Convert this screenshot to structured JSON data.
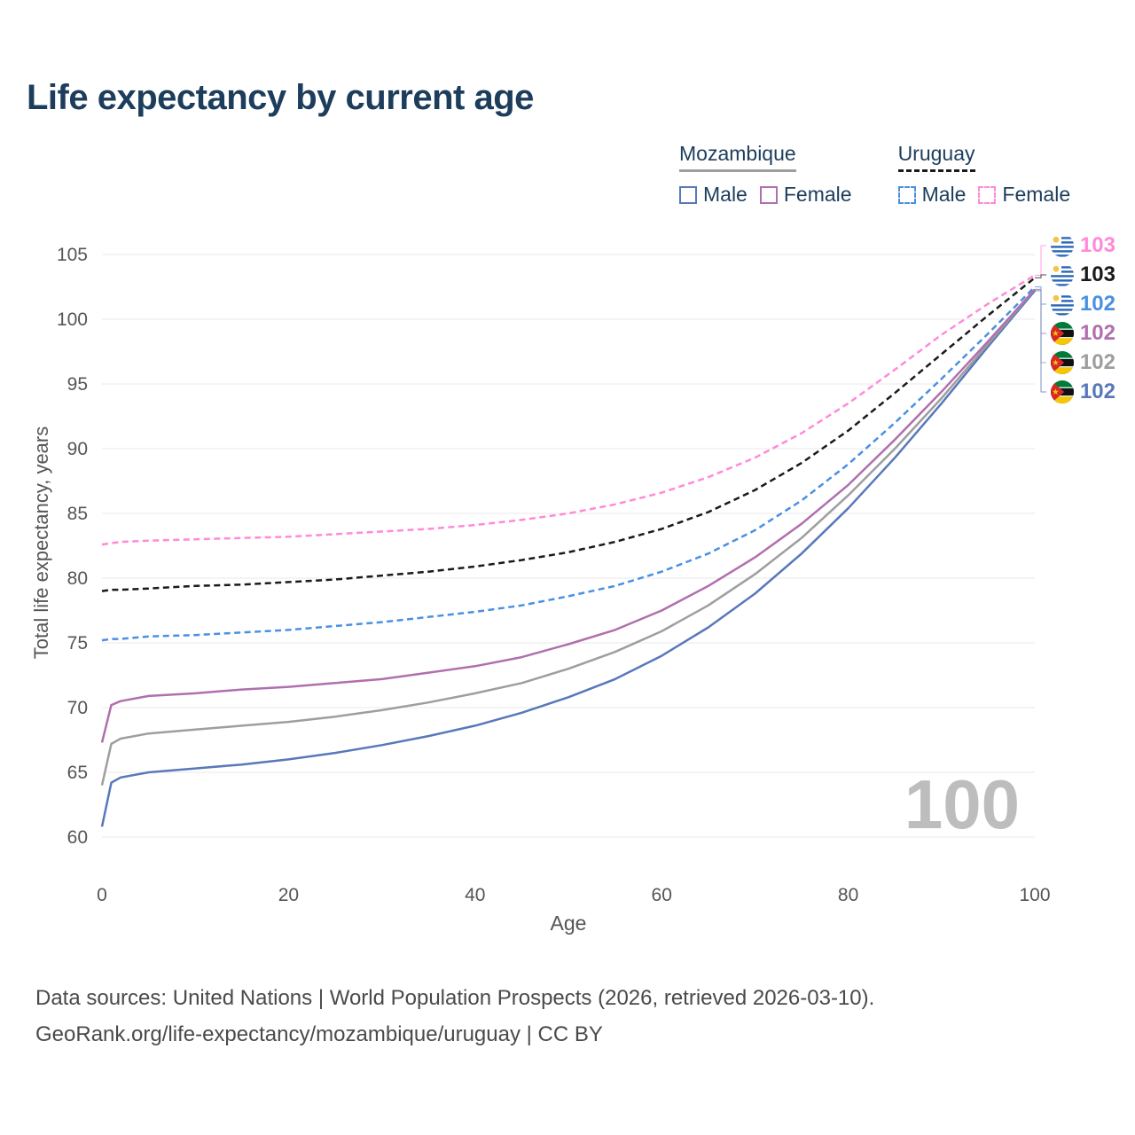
{
  "title": "Life expectancy by current age",
  "legend": {
    "mozambique_label": "Mozambique",
    "uruguay_label": "Uruguay",
    "male_label": "Male",
    "female_label": "Female"
  },
  "watermark": "100",
  "footer": {
    "line1": "Data sources: United Nations | World Population Prospects (2026, retrieved 2026-03-10).",
    "line2": "GeoRank.org/life-expectancy/mozambique/uruguay | CC BY"
  },
  "colors": {
    "title": "#1d3d5c",
    "moz_male": "#5878ba",
    "moz_female": "#b06fae",
    "moz_total": "#9e9e9e",
    "uru_male": "#4a90e2",
    "uru_female": "#ff8ad8",
    "uru_total": "#1a1a1a",
    "grid": "#e8e8e8",
    "tick": "#555555",
    "watermark": "#bdbdbd"
  },
  "end_labels": [
    {
      "series": "uru_female",
      "flag": "uruguay",
      "value": "103",
      "color": "#ff8ad8"
    },
    {
      "series": "uru_total",
      "flag": "uruguay",
      "value": "103",
      "color": "#1a1a1a"
    },
    {
      "series": "uru_male",
      "flag": "uruguay",
      "value": "102",
      "color": "#4a90e2"
    },
    {
      "series": "moz_female",
      "flag": "mozambique",
      "value": "102",
      "color": "#b06fae"
    },
    {
      "series": "moz_total",
      "flag": "mozambique",
      "value": "102",
      "color": "#9e9e9e"
    },
    {
      "series": "moz_male",
      "flag": "mozambique",
      "value": "102",
      "color": "#5878ba"
    }
  ],
  "chart_data": {
    "type": "line",
    "title": "Life expectancy by current age",
    "xlabel": "Age",
    "ylabel": "Total life expectancy, years",
    "xlim": [
      0,
      100
    ],
    "ylim": [
      60,
      105
    ],
    "xticks": [
      0,
      20,
      40,
      60,
      80,
      100
    ],
    "yticks": [
      60,
      65,
      70,
      75,
      80,
      85,
      90,
      95,
      100,
      105
    ],
    "grid": "horizontal",
    "legend_position": "top-right",
    "x": [
      0,
      1,
      2,
      5,
      10,
      15,
      20,
      25,
      30,
      35,
      40,
      45,
      50,
      55,
      60,
      65,
      70,
      75,
      80,
      85,
      90,
      95,
      100
    ],
    "series": [
      {
        "id": "moz_male",
        "name": "Mozambique Male",
        "color": "#5878ba",
        "dash": false,
        "values": [
          60.8,
          64.2,
          64.6,
          65.0,
          65.3,
          65.6,
          66.0,
          66.5,
          67.1,
          67.8,
          68.6,
          69.6,
          70.8,
          72.2,
          74.0,
          76.2,
          78.8,
          81.9,
          85.4,
          89.3,
          93.5,
          97.9,
          102.2
        ]
      },
      {
        "id": "moz_total",
        "name": "Mozambique",
        "color": "#9e9e9e",
        "dash": false,
        "values": [
          64.0,
          67.2,
          67.6,
          68.0,
          68.3,
          68.6,
          68.9,
          69.3,
          69.8,
          70.4,
          71.1,
          71.9,
          73.0,
          74.3,
          75.9,
          77.9,
          80.3,
          83.1,
          86.4,
          90.0,
          93.9,
          98.1,
          102.3
        ]
      },
      {
        "id": "moz_female",
        "name": "Mozambique Female",
        "color": "#b06fae",
        "dash": false,
        "values": [
          67.3,
          70.2,
          70.5,
          70.9,
          71.1,
          71.4,
          71.6,
          71.9,
          72.2,
          72.7,
          73.2,
          73.9,
          74.9,
          76.0,
          77.5,
          79.4,
          81.6,
          84.2,
          87.2,
          90.7,
          94.4,
          98.3,
          102.3
        ]
      },
      {
        "id": "uru_male",
        "name": "Uruguay Male",
        "color": "#4a90e2",
        "dash": true,
        "values": [
          75.2,
          75.3,
          75.3,
          75.5,
          75.6,
          75.8,
          76.0,
          76.3,
          76.6,
          77.0,
          77.4,
          77.9,
          78.6,
          79.4,
          80.5,
          81.9,
          83.7,
          86.0,
          88.8,
          92.0,
          95.4,
          98.9,
          102.5
        ]
      },
      {
        "id": "uru_total",
        "name": "Uruguay",
        "color": "#1a1a1a",
        "dash": true,
        "values": [
          79.0,
          79.1,
          79.1,
          79.2,
          79.4,
          79.5,
          79.7,
          79.9,
          80.2,
          80.5,
          80.9,
          81.4,
          82.0,
          82.8,
          83.8,
          85.1,
          86.8,
          88.9,
          91.4,
          94.3,
          97.3,
          100.3,
          103.2
        ]
      },
      {
        "id": "uru_female",
        "name": "Uruguay Female",
        "color": "#ff8ad8",
        "dash": true,
        "values": [
          82.6,
          82.7,
          82.8,
          82.9,
          83.0,
          83.1,
          83.2,
          83.4,
          83.6,
          83.8,
          84.1,
          84.5,
          85.0,
          85.7,
          86.6,
          87.8,
          89.3,
          91.2,
          93.5,
          96.1,
          98.8,
          101.2,
          103.4
        ]
      }
    ]
  }
}
